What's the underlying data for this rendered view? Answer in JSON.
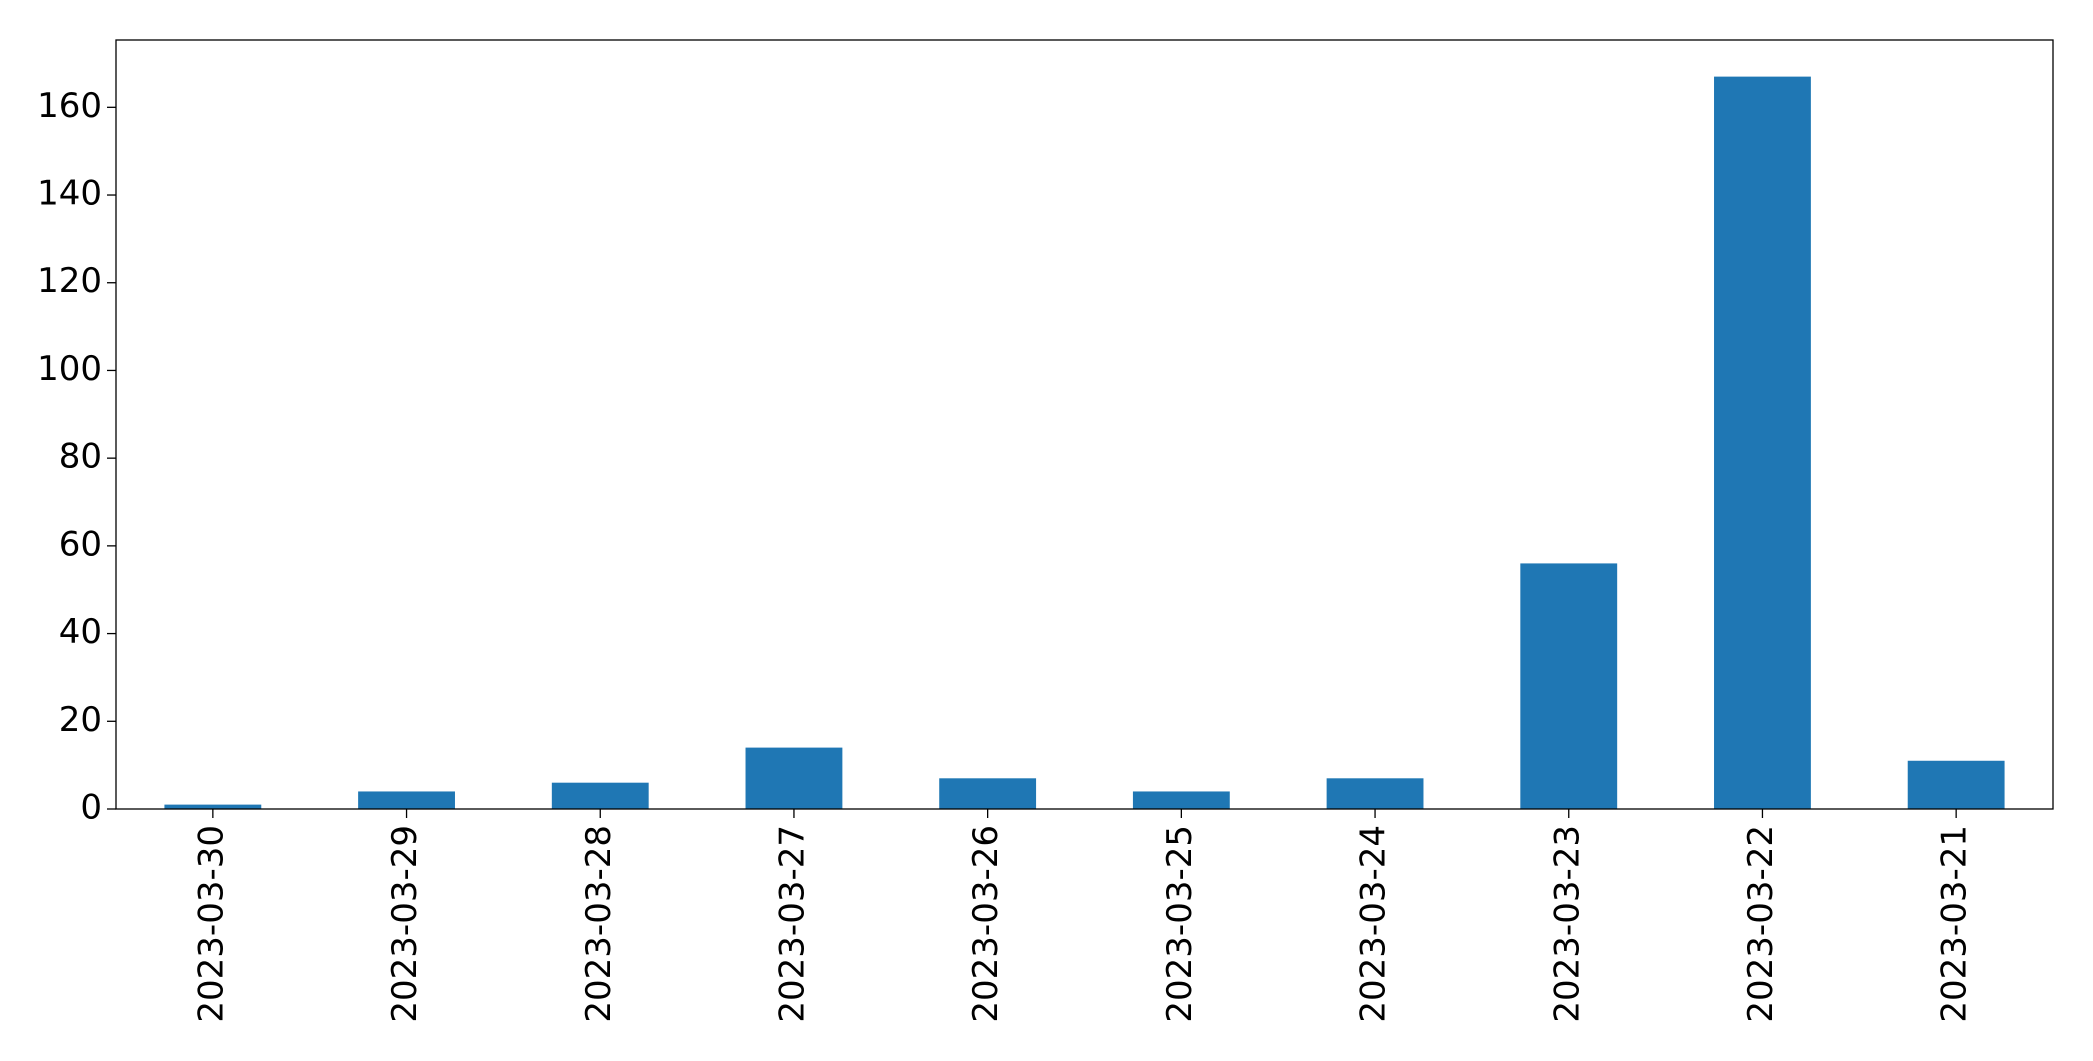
{
  "chart_data": {
    "type": "bar",
    "categories": [
      "2023-03-30",
      "2023-03-29",
      "2023-03-28",
      "2023-03-27",
      "2023-03-26",
      "2023-03-25",
      "2023-03-24",
      "2023-03-23",
      "2023-03-22",
      "2023-03-21"
    ],
    "values": [
      1,
      4,
      6,
      14,
      7,
      4,
      7,
      56,
      167,
      11
    ],
    "color": "#1f77b4",
    "ylim": [
      0,
      175.35
    ],
    "yticks": [
      0,
      20,
      40,
      60,
      80,
      100,
      120,
      140,
      160
    ],
    "grid": false
  }
}
